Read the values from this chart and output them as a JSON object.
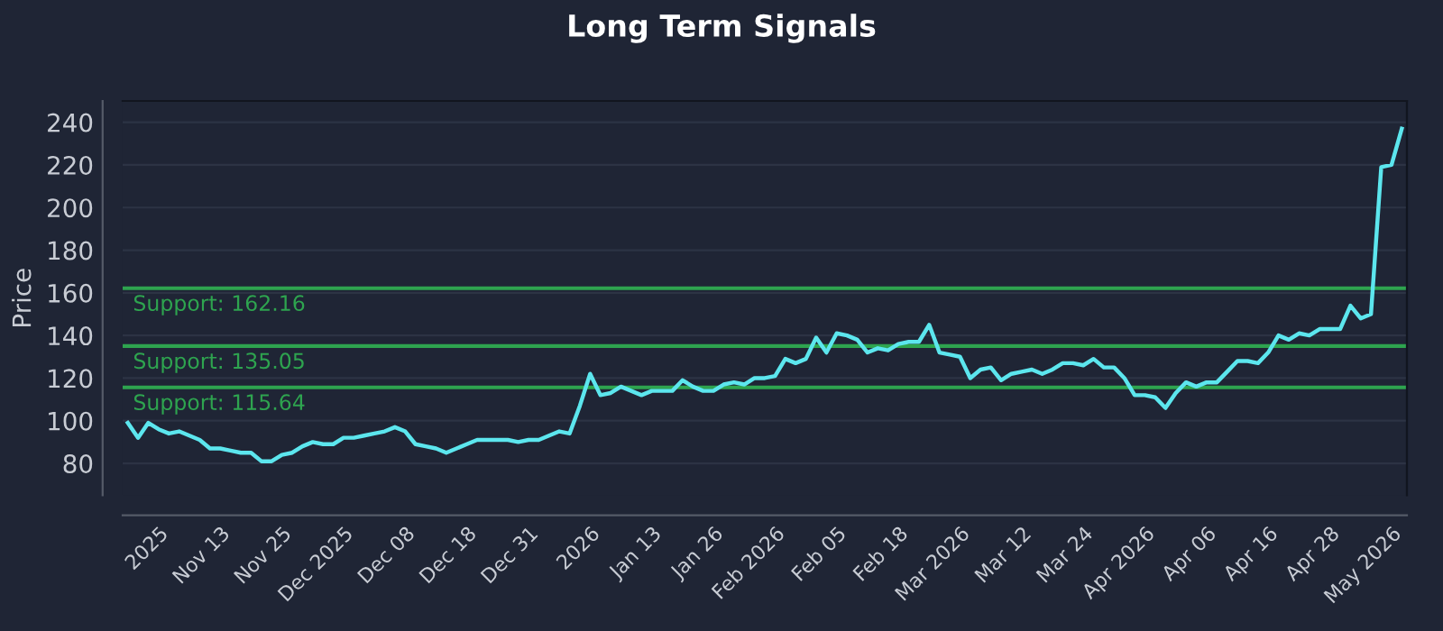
{
  "chart_data": {
    "type": "line",
    "title": "Long Term Signals",
    "ylabel": "Price",
    "categories": [
      null,
      null,
      null,
      "2025",
      null,
      null,
      null,
      null,
      null,
      "Nov 13",
      null,
      null,
      null,
      null,
      null,
      "Nov 25",
      null,
      null,
      null,
      null,
      null,
      "Dec 2025",
      null,
      null,
      null,
      null,
      null,
      "Dec 08",
      null,
      null,
      null,
      null,
      null,
      "Dec 18",
      null,
      null,
      null,
      null,
      null,
      "Dec 31",
      null,
      null,
      null,
      null,
      null,
      "2026",
      null,
      null,
      null,
      null,
      null,
      "Jan 13",
      null,
      null,
      null,
      null,
      null,
      "Jan 26",
      null,
      null,
      null,
      null,
      null,
      "Feb 2026",
      null,
      null,
      null,
      null,
      null,
      "Feb 05",
      null,
      null,
      null,
      null,
      null,
      "Feb 18",
      null,
      null,
      null,
      null,
      null,
      "Mar 2026",
      null,
      null,
      null,
      null,
      null,
      "Mar 12",
      null,
      null,
      null,
      null,
      null,
      "Mar 24",
      null,
      null,
      null,
      null,
      null,
      "Apr 2026",
      null,
      null,
      null,
      null,
      null,
      "Apr 06",
      null,
      null,
      null,
      null,
      null,
      "Apr 16",
      null,
      null,
      null,
      null,
      null,
      "Apr 28",
      null,
      null,
      null,
      null,
      null,
      "May 2026",
      null
    ],
    "series": [
      {
        "color": "#5ce6ee",
        "values": [
          99,
          92,
          99,
          96,
          94,
          95,
          93,
          91,
          87,
          87,
          86,
          85,
          85,
          81,
          81,
          84,
          85,
          88,
          90,
          89,
          89,
          92,
          92,
          93,
          94,
          95,
          97,
          95,
          89,
          88,
          87,
          85,
          87,
          89,
          91,
          91,
          91,
          91,
          90,
          91,
          91,
          93,
          95,
          94,
          107,
          122,
          112,
          113,
          116,
          114,
          112,
          114,
          114,
          114,
          119,
          116,
          114,
          114,
          117,
          118,
          117,
          120,
          120,
          121,
          129,
          127,
          129,
          139,
          132,
          141,
          140,
          138,
          132,
          134,
          133,
          136,
          137,
          137,
          145,
          132,
          131,
          130,
          120,
          124,
          125,
          119,
          122,
          123,
          124,
          122,
          124,
          127,
          127,
          126,
          129,
          125,
          125,
          120,
          112,
          112,
          111,
          106,
          113,
          118,
          116,
          118,
          118,
          123,
          128,
          128,
          127,
          132,
          140,
          138,
          141,
          140,
          143,
          143,
          143,
          154,
          148,
          150,
          219,
          220,
          237
        ]
      }
    ],
    "ylim": [
      65,
      250
    ],
    "yticks": [
      80,
      100,
      120,
      140,
      160,
      180,
      200,
      220,
      240
    ],
    "grid": "y",
    "ref_lines": [
      {
        "axis": "y",
        "value": 162.16,
        "label": "Support: 162.16",
        "color": "#2ea44f"
      },
      {
        "axis": "y",
        "value": 135.05,
        "label": "Support: 135.05",
        "color": "#2ea44f"
      },
      {
        "axis": "y",
        "value": 115.64,
        "label": "Support: 115.64",
        "color": "#2ea44f"
      }
    ]
  }
}
